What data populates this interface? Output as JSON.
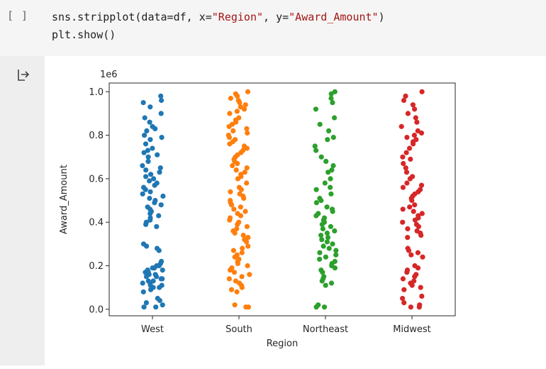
{
  "cell": {
    "prompt": "[ ]",
    "code_line1": {
      "pre": "sns.stripplot(data=df, x=",
      "s1": "\"Region\"",
      "mid": ", y=",
      "s2": "\"Award_Amount\"",
      "post": ")"
    },
    "code_line2": "plt.show()"
  },
  "output": {
    "icon": "output-redirect-icon"
  },
  "colors": {
    "West": "#1f77b4",
    "South": "#ff7f0e",
    "Northeast": "#2ca02c",
    "Midwest": "#d62728",
    "string": "#a31515"
  },
  "chart_data": {
    "type": "scatter",
    "subtype": "stripplot",
    "xlabel": "Region",
    "ylabel": "Award_Amount",
    "offset_label": "1e6",
    "categories": [
      "West",
      "South",
      "Northeast",
      "Midwest"
    ],
    "ylim": [
      -0.03,
      1.04
    ],
    "yticks": [
      0.0,
      0.2,
      0.4,
      0.6,
      0.8,
      1.0
    ],
    "ytick_labels": [
      "0.0",
      "0.2",
      "0.4",
      "0.6",
      "0.8",
      "1.0"
    ],
    "grid": false,
    "series": [
      {
        "values": [
          0.98,
          0.96,
          0.95,
          0.93,
          0.9,
          0.88,
          0.86,
          0.84,
          0.83,
          0.82,
          0.8,
          0.79,
          0.78,
          0.76,
          0.74,
          0.73,
          0.72,
          0.71,
          0.7,
          0.68,
          0.66,
          0.65,
          0.64,
          0.63,
          0.62,
          0.61,
          0.6,
          0.59,
          0.58,
          0.57,
          0.56,
          0.55,
          0.54,
          0.53,
          0.52,
          0.51,
          0.5,
          0.49,
          0.48,
          0.47,
          0.46,
          0.45,
          0.44,
          0.43,
          0.42,
          0.41,
          0.4,
          0.39,
          0.38,
          0.3,
          0.29,
          0.28,
          0.27,
          0.22,
          0.21,
          0.2,
          0.2,
          0.19,
          0.19,
          0.18,
          0.18,
          0.17,
          0.17,
          0.16,
          0.16,
          0.15,
          0.15,
          0.14,
          0.14,
          0.13,
          0.13,
          0.12,
          0.12,
          0.11,
          0.11,
          0.1,
          0.1,
          0.09,
          0.08,
          0.05,
          0.04,
          0.03,
          0.02,
          0.01,
          0.01
        ]
      },
      {
        "values": [
          1.0,
          0.99,
          0.98,
          0.97,
          0.96,
          0.95,
          0.94,
          0.93,
          0.92,
          0.91,
          0.9,
          0.88,
          0.87,
          0.86,
          0.85,
          0.84,
          0.83,
          0.82,
          0.81,
          0.8,
          0.79,
          0.78,
          0.77,
          0.76,
          0.75,
          0.74,
          0.73,
          0.72,
          0.71,
          0.7,
          0.69,
          0.68,
          0.67,
          0.66,
          0.65,
          0.64,
          0.63,
          0.62,
          0.61,
          0.6,
          0.58,
          0.56,
          0.55,
          0.54,
          0.53,
          0.52,
          0.51,
          0.5,
          0.49,
          0.48,
          0.47,
          0.46,
          0.45,
          0.44,
          0.43,
          0.42,
          0.41,
          0.4,
          0.39,
          0.38,
          0.37,
          0.36,
          0.35,
          0.34,
          0.33,
          0.32,
          0.31,
          0.29,
          0.28,
          0.27,
          0.26,
          0.25,
          0.24,
          0.23,
          0.22,
          0.21,
          0.2,
          0.19,
          0.18,
          0.17,
          0.16,
          0.15,
          0.14,
          0.13,
          0.12,
          0.11,
          0.1,
          0.09,
          0.08,
          0.02,
          0.01,
          0.01
        ]
      },
      {
        "values": [
          1.0,
          0.99,
          0.97,
          0.95,
          0.92,
          0.88,
          0.85,
          0.82,
          0.79,
          0.78,
          0.75,
          0.73,
          0.7,
          0.68,
          0.66,
          0.64,
          0.63,
          0.6,
          0.58,
          0.56,
          0.55,
          0.53,
          0.51,
          0.5,
          0.49,
          0.47,
          0.46,
          0.45,
          0.44,
          0.43,
          0.42,
          0.41,
          0.4,
          0.39,
          0.38,
          0.37,
          0.36,
          0.35,
          0.34,
          0.33,
          0.32,
          0.31,
          0.3,
          0.29,
          0.28,
          0.27,
          0.26,
          0.25,
          0.24,
          0.23,
          0.22,
          0.21,
          0.2,
          0.19,
          0.18,
          0.17,
          0.15,
          0.14,
          0.13,
          0.12,
          0.11,
          0.02,
          0.01,
          0.01
        ]
      },
      {
        "values": [
          1.0,
          0.98,
          0.96,
          0.94,
          0.92,
          0.9,
          0.88,
          0.86,
          0.84,
          0.82,
          0.81,
          0.8,
          0.79,
          0.78,
          0.77,
          0.76,
          0.74,
          0.72,
          0.7,
          0.69,
          0.67,
          0.65,
          0.63,
          0.61,
          0.6,
          0.58,
          0.57,
          0.56,
          0.55,
          0.54,
          0.53,
          0.52,
          0.51,
          0.5,
          0.48,
          0.47,
          0.46,
          0.45,
          0.44,
          0.43,
          0.42,
          0.41,
          0.4,
          0.39,
          0.38,
          0.37,
          0.36,
          0.35,
          0.34,
          0.33,
          0.28,
          0.27,
          0.26,
          0.25,
          0.24,
          0.2,
          0.19,
          0.18,
          0.17,
          0.16,
          0.15,
          0.14,
          0.13,
          0.12,
          0.11,
          0.1,
          0.09,
          0.06,
          0.05,
          0.03,
          0.02,
          0.01,
          0.01
        ]
      }
    ]
  }
}
